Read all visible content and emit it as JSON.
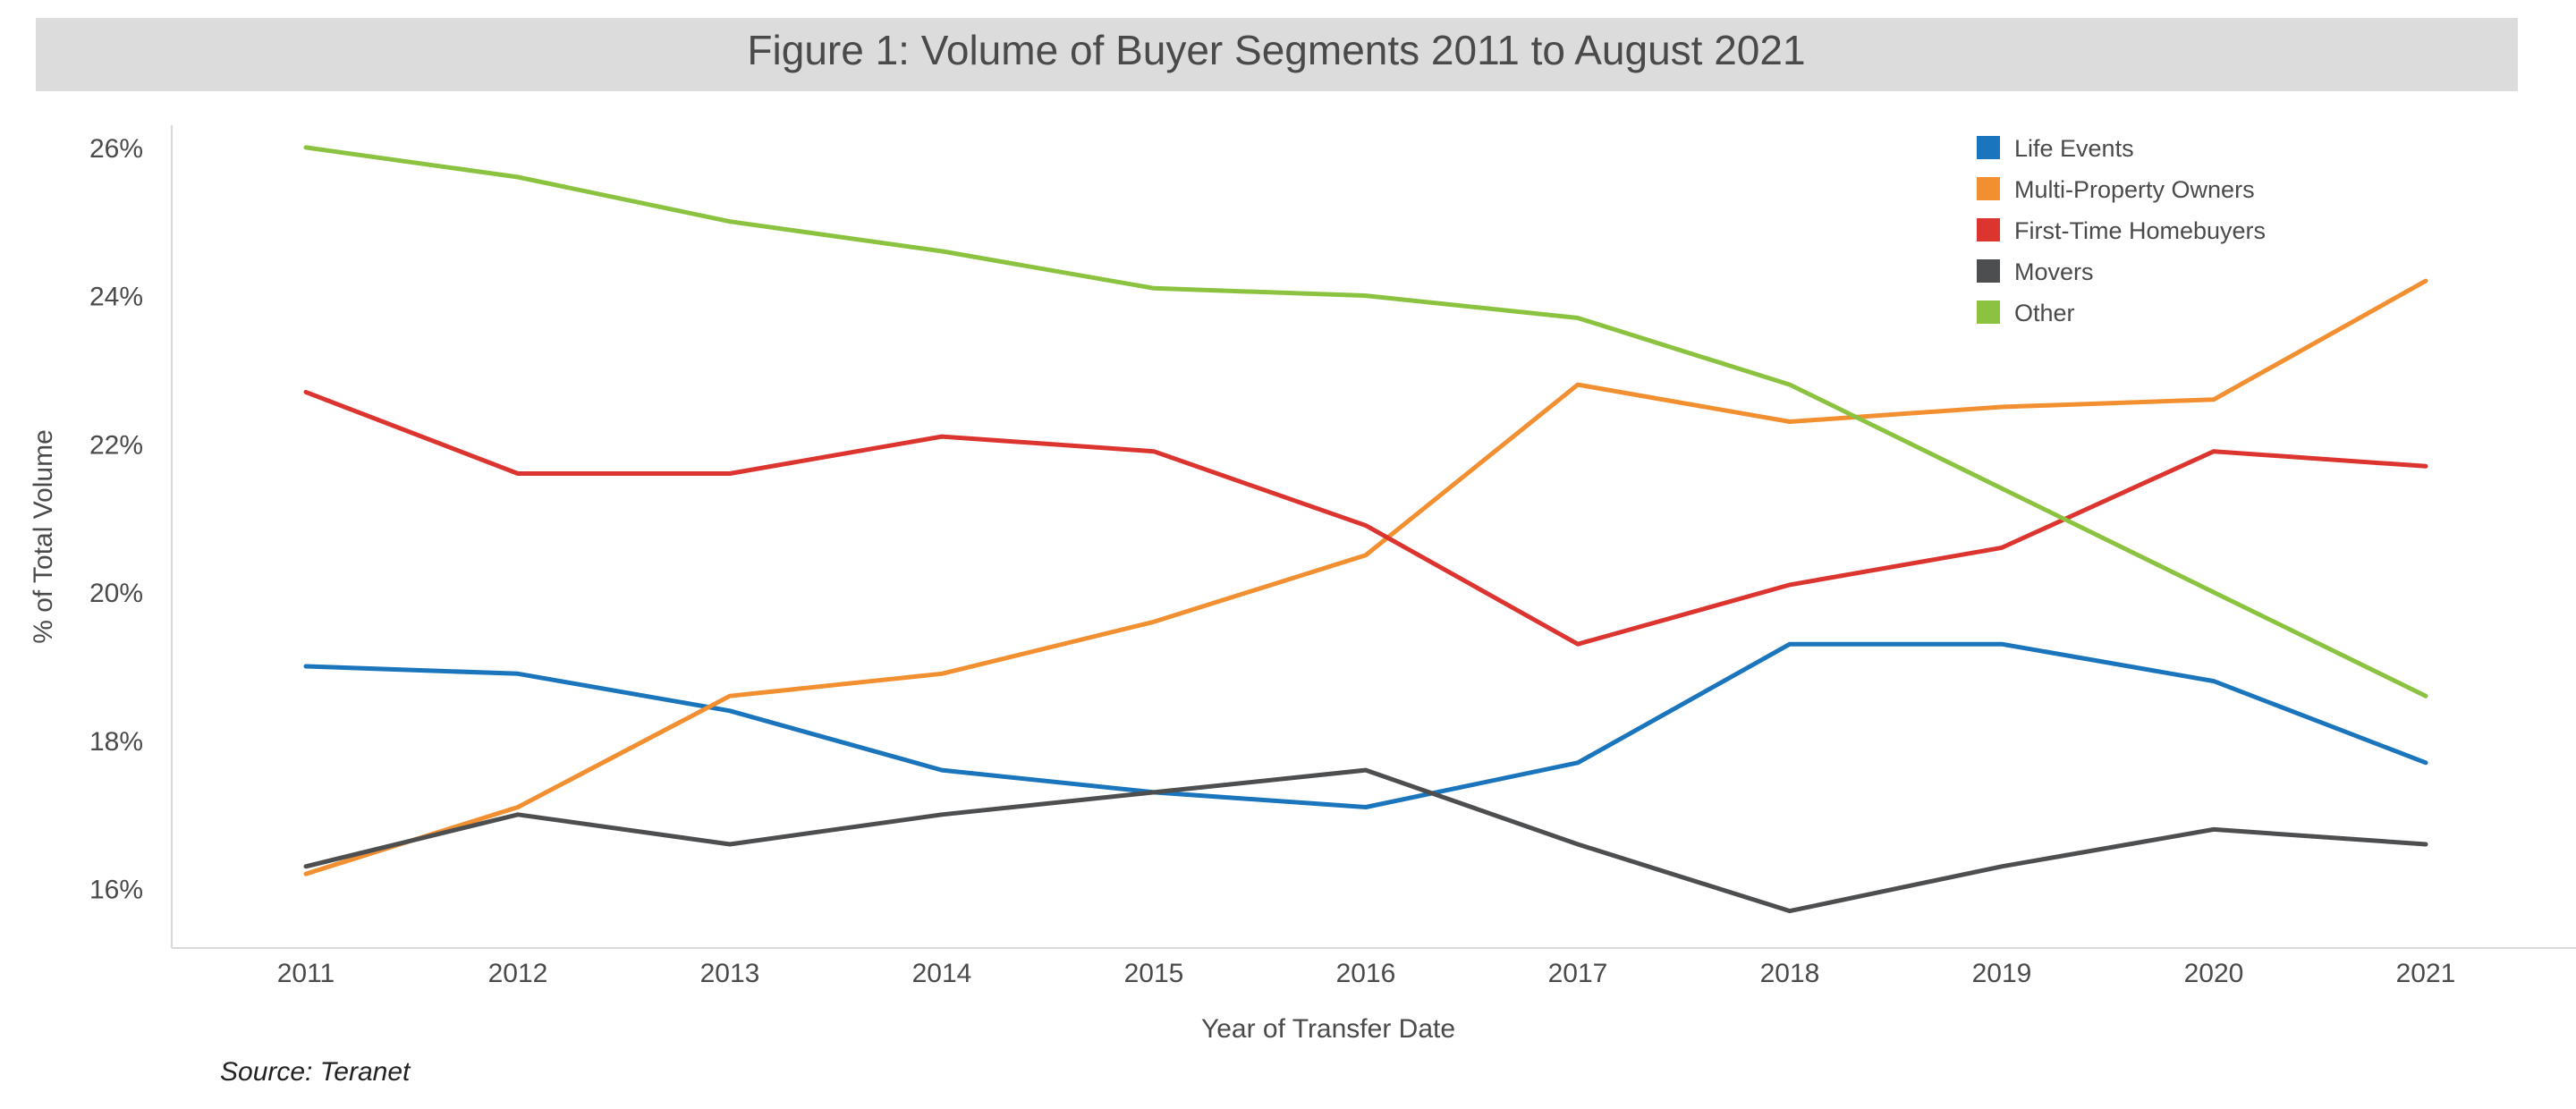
{
  "chart_data": {
    "type": "line",
    "title": "Figure 1: Volume of Buyer Segments 2011 to August 2021",
    "xlabel": "Year of Transfer Date",
    "ylabel": "% of Total Volume",
    "source": "Source: Teranet",
    "x": [
      "2011",
      "2012",
      "2013",
      "2014",
      "2015",
      "2016",
      "2017",
      "2018",
      "2019",
      "2020",
      "2021"
    ],
    "ylim": [
      15.2,
      26.3
    ],
    "yticks": [
      16,
      18,
      20,
      22,
      24,
      26
    ],
    "ytick_labels": [
      "16%",
      "18%",
      "20%",
      "22%",
      "24%",
      "26%"
    ],
    "legend_position": "top-right",
    "grid": false,
    "series": [
      {
        "name": "Life Events",
        "color": "#1a75bc",
        "values": [
          19.0,
          18.9,
          18.4,
          17.6,
          17.3,
          17.1,
          17.7,
          19.3,
          19.3,
          18.8,
          17.7
        ]
      },
      {
        "name": "Multi-Property Owners",
        "color": "#f18f31",
        "values": [
          16.2,
          17.1,
          18.6,
          18.9,
          19.6,
          20.5,
          22.8,
          22.3,
          22.5,
          22.6,
          24.2
        ]
      },
      {
        "name": "First-Time Homebuyers",
        "color": "#dc3530",
        "values": [
          22.7,
          21.6,
          21.6,
          22.1,
          21.9,
          20.9,
          19.3,
          20.1,
          20.6,
          21.9,
          21.7
        ]
      },
      {
        "name": "Movers",
        "color": "#4d4e50",
        "values": [
          16.3,
          17.0,
          16.6,
          17.0,
          17.3,
          17.6,
          16.6,
          15.7,
          16.3,
          16.8,
          16.6
        ]
      },
      {
        "name": "Other",
        "color": "#8bc341",
        "values": [
          26.0,
          25.6,
          25.0,
          24.6,
          24.1,
          24.0,
          23.7,
          22.8,
          21.4,
          20.0,
          18.6
        ]
      }
    ]
  }
}
